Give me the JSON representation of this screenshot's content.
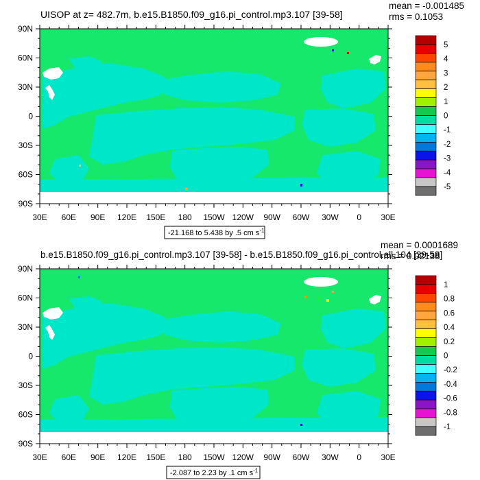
{
  "chart_data": [
    {
      "type": "heatmap",
      "title": "UISOP at z= 482.7m, b.e15.B1850.f09_g16.pi_control.mp3.107 [39-58]",
      "stats": [
        "mean = -0.001485",
        "rms = 0.1053"
      ],
      "range_label": "-21.168 to 5.438 by .5 cm s",
      "units_exp": "-1",
      "x_ticks": [
        "30E",
        "60E",
        "90E",
        "120E",
        "150E",
        "180",
        "150W",
        "120W",
        "90W",
        "60W",
        "30W",
        "0",
        "30E"
      ],
      "y_ticks": [
        "90N",
        "60N",
        "30N",
        "0",
        "30S",
        "60S",
        "90S"
      ],
      "colorbar": {
        "labels": [
          "5",
          "4",
          "3",
          "2",
          "1",
          "0",
          "-1",
          "-2",
          "-3",
          "-4",
          "-5"
        ],
        "colors": [
          "#b40000",
          "#e60000",
          "#ff4500",
          "#ff8c1a",
          "#ffa640",
          "#ffc040",
          "#ffff00",
          "#a0f000",
          "#14c850",
          "#00dca0",
          "#40ffff",
          "#00b4f0",
          "#0078dc",
          "#0a14e6",
          "#8c14c8",
          "#e614d2",
          "#c8c8c8",
          "#6e6e6e"
        ]
      },
      "field_colors": {
        "base": "#16e86c",
        "negative": "#00e6c8",
        "land": "#ffffff"
      }
    },
    {
      "type": "heatmap",
      "title": "b.e15.B1850.f09_g16.pi_control.mp3.107 [39-58] - b.e15.B1850.f09_g16.pi_control.all.104 [39-58]",
      "stats": [
        "mean = 0.0001689",
        "rms = 0.02138"
      ],
      "range_label": "-2.087 to 2.23 by .1 cm s",
      "units_exp": "-1",
      "x_ticks": [
        "30E",
        "60E",
        "90E",
        "120E",
        "150E",
        "180",
        "150W",
        "120W",
        "90W",
        "60W",
        "30W",
        "0",
        "30E"
      ],
      "y_ticks": [
        "90N",
        "60N",
        "30N",
        "0",
        "30S",
        "60S",
        "90S"
      ],
      "colorbar": {
        "labels": [
          "1",
          "0.8",
          "0.6",
          "0.4",
          "0.2",
          "0",
          "-0.2",
          "-0.4",
          "-0.6",
          "-0.8",
          "-1"
        ],
        "colors": [
          "#b40000",
          "#e60000",
          "#ff4500",
          "#ff8c1a",
          "#ffa640",
          "#ffc040",
          "#ffff00",
          "#a0f000",
          "#14c850",
          "#00dca0",
          "#40ffff",
          "#00b4f0",
          "#0078dc",
          "#0a14e6",
          "#8c14c8",
          "#e614d2",
          "#c8c8c8",
          "#6e6e6e"
        ]
      },
      "field_colors": {
        "base": "#16e86c",
        "negative": "#00e6c8",
        "land": "#ffffff"
      }
    }
  ]
}
